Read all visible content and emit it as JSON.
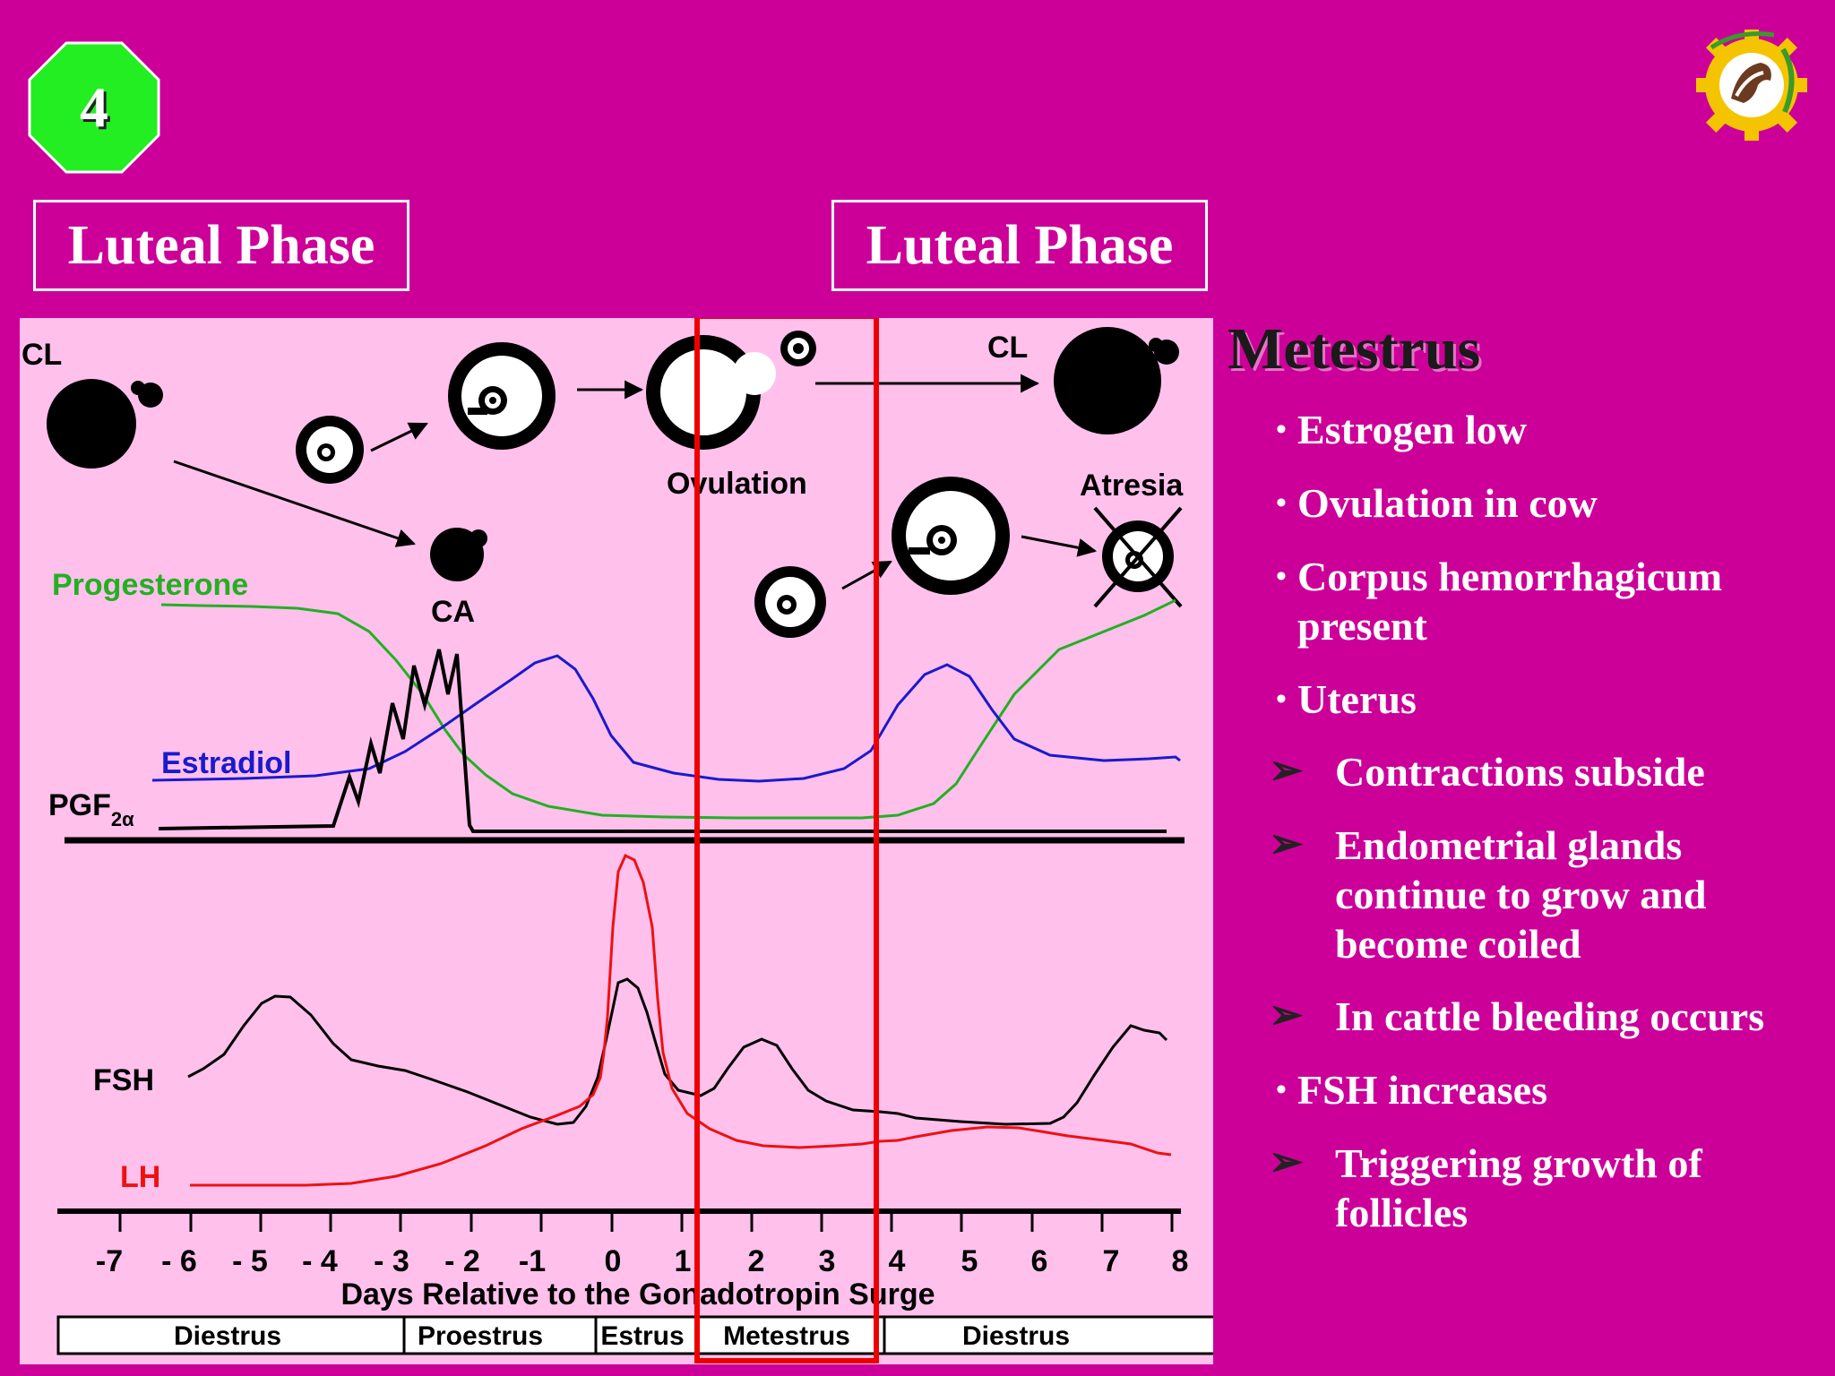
{
  "slide_number": "4",
  "phase_labels": [
    "Luteal Phase",
    "Luteal Phase"
  ],
  "side": {
    "title": "Metestrus",
    "items": [
      {
        "kind": "bullet",
        "text": "Estrogen low"
      },
      {
        "kind": "bullet",
        "text": "Ovulation in cow"
      },
      {
        "kind": "bullet",
        "text": "Corpus hemorrhagicum present"
      },
      {
        "kind": "bullet",
        "text": "Uterus"
      },
      {
        "kind": "arrow",
        "text": "Contractions subside"
      },
      {
        "kind": "arrow",
        "text": "Endometrial glands continue to grow and become coiled"
      },
      {
        "kind": "arrow",
        "text": "In cattle bleeding occurs"
      },
      {
        "kind": "bullet",
        "text": "FSH increases"
      },
      {
        "kind": "arrow",
        "text": "Triggering growth of follicles"
      }
    ]
  },
  "diagram": {
    "structure_labels": {
      "cl_left": "CL",
      "cl_right": "CL",
      "ovulation": "Ovulation",
      "atresia": "Atresia",
      "ca": "CA"
    },
    "hormone_labels": {
      "progesterone": "Progesterone",
      "estradiol": "Estradiol",
      "pgf_base": "PGF",
      "pgf_sub": "2α",
      "fsh": "FSH",
      "lh": "LH"
    },
    "x_ticks": [
      "-7",
      "- 6",
      "- 5",
      "- 4",
      "- 3",
      "- 2",
      "-1",
      "0",
      "1",
      "2",
      "3",
      "4",
      "5",
      "6",
      "7",
      "8"
    ],
    "x_axis_label": "Days Relative to the Gonadotropin Surge",
    "stages": [
      "Diestrus",
      "Proestrus",
      "Estrus",
      "Metestrus",
      "Diestrus"
    ],
    "colors": {
      "background": "#cc0099",
      "panel": "#ffc0ec",
      "progesterone": "#22b022",
      "estradiol": "#1a1acc",
      "lh": "#ee1111",
      "highlight": "#ee0000",
      "badge": "#22ee22"
    }
  }
}
